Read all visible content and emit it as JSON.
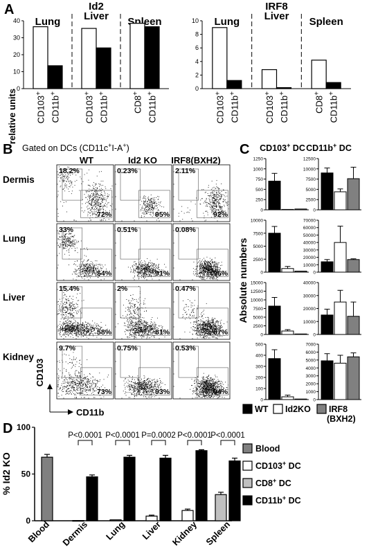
{
  "panel_labels": {
    "a": "A",
    "b": "B",
    "c": "C",
    "d": "D"
  },
  "panel_a": {
    "ylabel": "relative units",
    "charts": [
      {
        "gene": "Id2",
        "yticks": [
          0,
          10,
          20,
          30,
          40
        ],
        "ylim": [
          0,
          40
        ],
        "groups": [
          {
            "label": "Lung",
            "bars": [
              {
                "cat": "CD103",
                "sup": "+",
                "value": 36.5,
                "fill": "white"
              },
              {
                "cat": "CD11b",
                "sup": "+",
                "value": 13.5,
                "fill": "black"
              }
            ]
          },
          {
            "label": "Liver",
            "bars": [
              {
                "cat": "CD103",
                "sup": "+",
                "value": 35.5,
                "fill": "white"
              },
              {
                "cat": "CD11b",
                "sup": "+",
                "value": 24,
                "fill": "black"
              }
            ]
          },
          {
            "label": "Spleen",
            "bars": [
              {
                "cat": "CD8",
                "sup": "+",
                "value": 38.5,
                "fill": "white"
              },
              {
                "cat": "CD11b",
                "sup": "+",
                "value": 36.5,
                "fill": "black"
              }
            ]
          }
        ]
      },
      {
        "gene": "IRF8",
        "yticks": [
          0,
          2,
          4,
          6,
          8,
          10
        ],
        "ylim": [
          0,
          10
        ],
        "groups": [
          {
            "label": "Lung",
            "bars": [
              {
                "cat": "CD103",
                "sup": "+",
                "value": 9,
                "fill": "white"
              },
              {
                "cat": "CD11b",
                "sup": "+",
                "value": 1.2,
                "fill": "black"
              }
            ]
          },
          {
            "label": "Liver",
            "bars": [
              {
                "cat": "CD103",
                "sup": "+",
                "value": 2.8,
                "fill": "white"
              },
              {
                "cat": "CD11b",
                "sup": "+",
                "value": 0.15,
                "fill": "black"
              }
            ]
          },
          {
            "label": "Spleen",
            "bars": [
              {
                "cat": "CD8",
                "sup": "+",
                "value": 4.2,
                "fill": "white"
              },
              {
                "cat": "CD11b",
                "sup": "+",
                "value": 0.9,
                "fill": "black"
              }
            ]
          }
        ]
      }
    ]
  },
  "panel_b": {
    "gating_text": "Gated on DCs (CD11c",
    "gating_sup1": "+",
    "gating_mid": "I-A",
    "gating_sup2": "+",
    "gating_end": ")",
    "columns": [
      "WT",
      "Id2 KO",
      "IRF8(BXH2)"
    ],
    "rows": [
      {
        "tissue": "Dermis",
        "gates": [
          [
            "18.2%",
            "72%"
          ],
          [
            "0.23%",
            "95%"
          ],
          [
            "2.11%",
            "92%"
          ]
        ]
      },
      {
        "tissue": "Lung",
        "gates": [
          [
            "33%",
            "54%"
          ],
          [
            "0.51%",
            "91%"
          ],
          [
            "0.08%",
            "96%"
          ]
        ]
      },
      {
        "tissue": "Liver",
        "gates": [
          [
            "15.4%",
            "58%"
          ],
          [
            "2%",
            "81%"
          ],
          [
            "0.47%",
            "87%"
          ]
        ]
      },
      {
        "tissue": "Kidney",
        "gates": [
          [
            "9.7%",
            "73%"
          ],
          [
            "0.75%",
            "93%"
          ],
          [
            "0.53%",
            "94%"
          ]
        ]
      }
    ],
    "y_axis_label": "CD103",
    "x_axis_label": "CD11b"
  },
  "panel_c": {
    "titles": [
      {
        "main": "CD103",
        "sup": "+",
        "end": " DC"
      },
      {
        "main": "CD11b",
        "sup": "+",
        "end": " DC"
      }
    ],
    "ylabel": "Absolute numbers",
    "colors": {
      "WT": "#000000",
      "Id2KO": "#ffffff",
      "IRF8": "#808080"
    },
    "rows": [
      {
        "left": {
          "yticks": [
            0,
            250,
            500,
            750,
            1000,
            1250
          ],
          "ylim": [
            0,
            1250
          ],
          "values": [
            700,
            10,
            20
          ],
          "errors": [
            190,
            0,
            0
          ]
        },
        "right": {
          "yticks": [
            0,
            2500,
            5000,
            7500,
            10000,
            12500
          ],
          "ylim": [
            0,
            12500
          ],
          "values": [
            9000,
            4400,
            7600
          ],
          "errors": [
            1200,
            700,
            2800
          ]
        }
      },
      {
        "left": {
          "yticks": [
            0,
            2500,
            5000,
            7500,
            10000
          ],
          "ylim": [
            0,
            10000
          ],
          "values": [
            7500,
            700,
            200
          ],
          "errors": [
            1300,
            400,
            0
          ]
        },
        "right": {
          "yticks": [
            0,
            10000,
            20000,
            30000,
            40000,
            50000,
            60000,
            70000
          ],
          "ylim": [
            0,
            70000
          ],
          "values": [
            14000,
            40000,
            17000
          ],
          "errors": [
            3000,
            22000,
            1000
          ]
        }
      },
      {
        "left": {
          "yticks": [
            0,
            2500,
            5000,
            7500,
            10000,
            12500,
            15000
          ],
          "ylim": [
            0,
            15000
          ],
          "values": [
            8200,
            1000,
            150
          ],
          "errors": [
            2500,
            400,
            0
          ]
        },
        "right": {
          "yticks": [
            0,
            10000,
            20000,
            30000,
            40000
          ],
          "ylim": [
            0,
            40000
          ],
          "values": [
            15000,
            25000,
            14000
          ],
          "errors": [
            4500,
            9000,
            11000
          ]
        }
      },
      {
        "left": {
          "yticks": [
            0,
            100,
            200,
            300,
            400,
            500
          ],
          "ylim": [
            0,
            500
          ],
          "values": [
            370,
            25,
            5
          ],
          "errors": [
            80,
            15,
            0
          ]
        },
        "right": {
          "yticks": [
            0,
            1000,
            2000,
            3000,
            4000,
            5000,
            6000,
            7000
          ],
          "ylim": [
            0,
            7000
          ],
          "values": [
            4900,
            4600,
            5400
          ],
          "errors": [
            900,
            1000,
            500
          ]
        }
      }
    ],
    "legend": [
      {
        "label": "WT",
        "color": "#000000"
      },
      {
        "label": "Id2KO",
        "color": "#ffffff"
      },
      {
        "label": "IRF8",
        "label2": "(BXH2)",
        "color": "#808080"
      }
    ]
  },
  "chart_data": {
    "type": "bar",
    "ylabel": "% Id2 KO",
    "ylim": [
      0,
      100
    ],
    "yticks": [
      0,
      50,
      100
    ],
    "categories": [
      "Blood",
      "Dermis",
      "Lung",
      "Liver",
      "Kidney",
      "Spleen"
    ],
    "series": [
      {
        "name": "Blood",
        "color": "#808080",
        "values": [
          68,
          null,
          null,
          null,
          null,
          null
        ],
        "errors": [
          3,
          null,
          null,
          null,
          null,
          null
        ]
      },
      {
        "name": "CD103+ DC",
        "color": "#ffffff",
        "values": [
          null,
          0.3,
          1,
          5,
          11,
          null
        ],
        "errors": [
          null,
          0,
          0,
          1,
          1.5,
          null
        ]
      },
      {
        "name": "CD8+ DC",
        "color": "#c0c0c0",
        "values": [
          null,
          null,
          null,
          null,
          null,
          28
        ],
        "errors": [
          null,
          null,
          null,
          null,
          null,
          2.5
        ]
      },
      {
        "name": "CD11b+ DC",
        "color": "#000000",
        "values": [
          null,
          47,
          68,
          67,
          75,
          64
        ],
        "errors": [
          null,
          2,
          2,
          3,
          1,
          3
        ]
      }
    ],
    "pvalues": [
      "P<0.0001",
      "P<0.0001",
      "P=0.0002",
      "P<0.0001",
      "P<0.0001"
    ],
    "legend": [
      {
        "label": "Blood",
        "sup": "",
        "end": "",
        "color": "#808080"
      },
      {
        "label": "CD103",
        "sup": "+",
        "end": " DC",
        "color": "#ffffff"
      },
      {
        "label": "CD8",
        "sup": "+",
        "end": " DC",
        "color": "#c0c0c0"
      },
      {
        "label": "CD11b",
        "sup": "+",
        "end": " DC",
        "color": "#000000"
      }
    ]
  }
}
